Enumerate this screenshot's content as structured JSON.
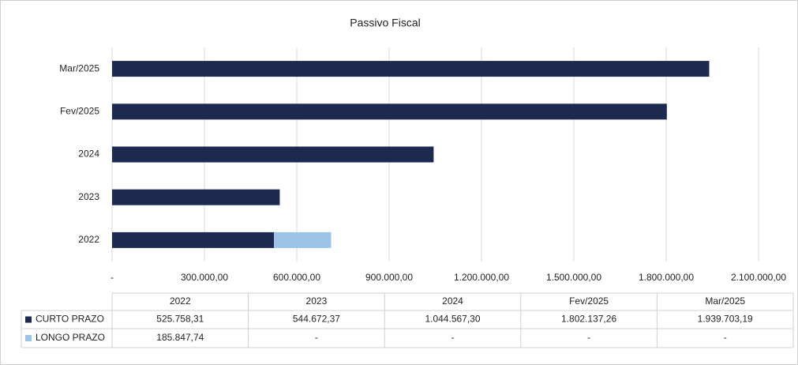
{
  "chart_data": {
    "type": "stacked_barh",
    "title": "Passivo Fiscal",
    "categories": [
      "2022",
      "2023",
      "2024",
      "Fev/2025",
      "Mar/2025"
    ],
    "series": [
      {
        "name": "CURTO PRAZO",
        "color": "#1b2a4e",
        "values": [
          525758.31,
          544672.37,
          1044567.3,
          1802137.26,
          1939703.19
        ],
        "value_labels": [
          "525.758,31",
          "544.672,37",
          "1.044.567,30",
          "1.802.137,26",
          "1.939.703,19"
        ]
      },
      {
        "name": "LONGO PRAZO",
        "color": "#9dc3e6",
        "values": [
          185847.74,
          0,
          0,
          0,
          0
        ],
        "value_labels": [
          "185.847,74",
          "-",
          "-",
          "-",
          "-"
        ]
      }
    ],
    "xlim": [
      0,
      2100000
    ],
    "xticks": [
      {
        "value": 0,
        "label": "-"
      },
      {
        "value": 300000,
        "label": "300.000,00"
      },
      {
        "value": 600000,
        "label": "600.000,00"
      },
      {
        "value": 900000,
        "label": "900.000,00"
      },
      {
        "value": 1200000,
        "label": "1.200.000,00"
      },
      {
        "value": 1500000,
        "label": "1.500.000,00"
      },
      {
        "value": 1800000,
        "label": "1.800.000,00"
      },
      {
        "value": 2100000,
        "label": "2.100.000,00"
      }
    ],
    "grid": true,
    "data_table": true
  }
}
